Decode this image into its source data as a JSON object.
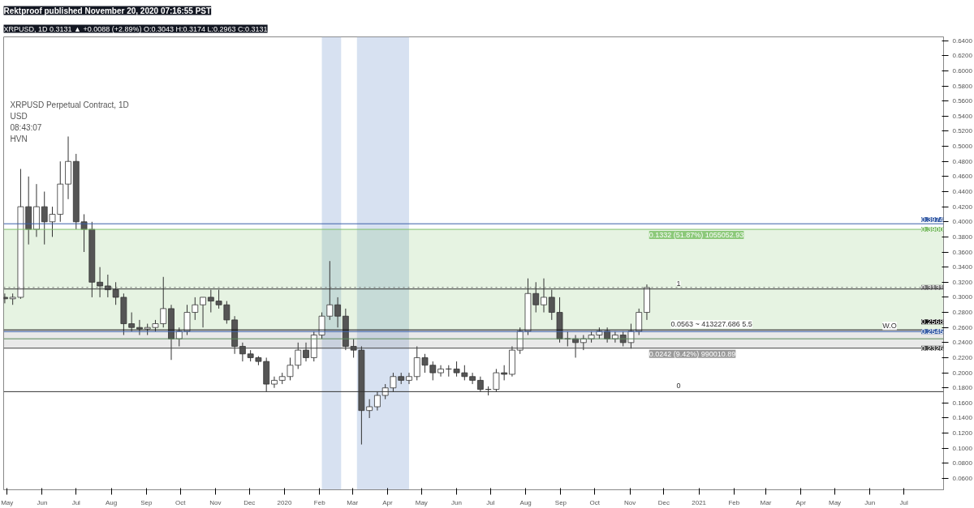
{
  "chart_data": {
    "type": "candlestick",
    "title": "Rektproof published November 20, 2020 07:16:55 PST",
    "subtitle": "XRPUSD, 1D 0.3131 ▲ +0.0088 (+2.89%) O:0.3043 H:0.3174 L:0.2963 C:0.3131",
    "x": [
      "2019-04-29",
      "2019-05-06",
      "2019-05-13",
      "2019-05-20",
      "2019-05-27",
      "2019-06-03",
      "2019-06-10",
      "2019-06-17",
      "2019-06-24",
      "2019-07-01",
      "2019-07-08",
      "2019-07-15",
      "2019-07-22",
      "2019-07-29",
      "2019-08-05",
      "2019-08-12",
      "2019-08-19",
      "2019-08-26",
      "2019-09-02",
      "2019-09-09",
      "2019-09-16",
      "2019-09-23",
      "2019-09-30",
      "2019-10-07",
      "2019-10-14",
      "2019-10-21",
      "2019-10-28",
      "2019-11-04",
      "2019-11-11",
      "2019-11-18",
      "2019-11-25",
      "2019-12-02",
      "2019-12-09",
      "2019-12-16",
      "2019-12-23",
      "2019-12-30",
      "2020-01-06",
      "2020-01-13",
      "2020-01-20",
      "2020-01-27",
      "2020-02-03",
      "2020-02-10",
      "2020-02-17",
      "2020-02-24",
      "2020-03-02",
      "2020-03-09",
      "2020-03-16",
      "2020-03-23",
      "2020-03-30",
      "2020-04-06",
      "2020-04-13",
      "2020-04-20",
      "2020-04-27",
      "2020-05-04",
      "2020-05-11",
      "2020-05-18",
      "2020-05-25",
      "2020-06-01",
      "2020-06-08",
      "2020-06-15",
      "2020-06-22",
      "2020-06-29",
      "2020-07-06",
      "2020-07-13",
      "2020-07-20",
      "2020-07-27",
      "2020-08-03",
      "2020-08-10",
      "2020-08-17",
      "2020-08-24",
      "2020-08-31",
      "2020-09-07",
      "2020-09-14",
      "2020-09-21",
      "2020-09-28",
      "2020-10-05",
      "2020-10-12",
      "2020-10-19",
      "2020-10-26",
      "2020-11-02",
      "2020-11-09",
      "2020-11-16"
    ],
    "ohlc": [
      [
        0.3,
        0.305,
        0.292,
        0.298
      ],
      [
        0.298,
        0.305,
        0.29,
        0.3
      ],
      [
        0.3,
        0.47,
        0.298,
        0.42
      ],
      [
        0.42,
        0.46,
        0.37,
        0.39
      ],
      [
        0.39,
        0.45,
        0.38,
        0.42
      ],
      [
        0.42,
        0.44,
        0.37,
        0.4
      ],
      [
        0.4,
        0.42,
        0.38,
        0.41
      ],
      [
        0.41,
        0.48,
        0.4,
        0.45
      ],
      [
        0.45,
        0.513,
        0.43,
        0.48
      ],
      [
        0.48,
        0.49,
        0.39,
        0.4
      ],
      [
        0.4,
        0.41,
        0.36,
        0.39
      ],
      [
        0.39,
        0.4,
        0.3,
        0.32
      ],
      [
        0.32,
        0.34,
        0.3,
        0.315
      ],
      [
        0.315,
        0.33,
        0.3,
        0.31
      ],
      [
        0.31,
        0.32,
        0.29,
        0.3
      ],
      [
        0.3,
        0.305,
        0.25,
        0.265
      ],
      [
        0.265,
        0.28,
        0.255,
        0.26
      ],
      [
        0.26,
        0.27,
        0.25,
        0.258
      ],
      [
        0.258,
        0.265,
        0.25,
        0.26
      ],
      [
        0.26,
        0.27,
        0.255,
        0.265
      ],
      [
        0.265,
        0.327,
        0.26,
        0.285
      ],
      [
        0.285,
        0.29,
        0.217,
        0.245
      ],
      [
        0.245,
        0.26,
        0.235,
        0.255
      ],
      [
        0.255,
        0.29,
        0.25,
        0.28
      ],
      [
        0.28,
        0.3,
        0.27,
        0.29
      ],
      [
        0.29,
        0.3,
        0.26,
        0.3
      ],
      [
        0.3,
        0.31,
        0.28,
        0.295
      ],
      [
        0.295,
        0.31,
        0.285,
        0.29
      ],
      [
        0.29,
        0.295,
        0.265,
        0.27
      ],
      [
        0.27,
        0.275,
        0.225,
        0.235
      ],
      [
        0.235,
        0.24,
        0.215,
        0.225
      ],
      [
        0.225,
        0.23,
        0.215,
        0.22
      ],
      [
        0.22,
        0.222,
        0.21,
        0.215
      ],
      [
        0.215,
        0.22,
        0.175,
        0.185
      ],
      [
        0.185,
        0.195,
        0.18,
        0.19
      ],
      [
        0.19,
        0.2,
        0.185,
        0.195
      ],
      [
        0.195,
        0.22,
        0.19,
        0.21
      ],
      [
        0.21,
        0.24,
        0.205,
        0.23
      ],
      [
        0.23,
        0.24,
        0.215,
        0.22
      ],
      [
        0.22,
        0.255,
        0.215,
        0.25
      ],
      [
        0.25,
        0.28,
        0.245,
        0.275
      ],
      [
        0.275,
        0.348,
        0.27,
        0.29
      ],
      [
        0.29,
        0.3,
        0.26,
        0.275
      ],
      [
        0.275,
        0.285,
        0.23,
        0.235
      ],
      [
        0.235,
        0.245,
        0.22,
        0.23
      ],
      [
        0.23,
        0.235,
        0.105,
        0.15
      ],
      [
        0.15,
        0.165,
        0.14,
        0.155
      ],
      [
        0.155,
        0.175,
        0.15,
        0.17
      ],
      [
        0.17,
        0.185,
        0.165,
        0.18
      ],
      [
        0.18,
        0.2,
        0.175,
        0.195
      ],
      [
        0.195,
        0.2,
        0.185,
        0.19
      ],
      [
        0.19,
        0.2,
        0.185,
        0.195
      ],
      [
        0.195,
        0.235,
        0.19,
        0.22
      ],
      [
        0.22,
        0.225,
        0.2,
        0.21
      ],
      [
        0.21,
        0.215,
        0.19,
        0.2
      ],
      [
        0.2,
        0.21,
        0.195,
        0.205
      ],
      [
        0.205,
        0.21,
        0.195,
        0.205
      ],
      [
        0.205,
        0.215,
        0.195,
        0.2
      ],
      [
        0.2,
        0.21,
        0.19,
        0.195
      ],
      [
        0.195,
        0.2,
        0.185,
        0.19
      ],
      [
        0.19,
        0.195,
        0.175,
        0.178
      ],
      [
        0.178,
        0.182,
        0.17,
        0.178
      ],
      [
        0.178,
        0.205,
        0.175,
        0.2
      ],
      [
        0.2,
        0.21,
        0.19,
        0.198
      ],
      [
        0.198,
        0.235,
        0.195,
        0.23
      ],
      [
        0.23,
        0.26,
        0.225,
        0.255
      ],
      [
        0.255,
        0.325,
        0.25,
        0.305
      ],
      [
        0.305,
        0.32,
        0.28,
        0.29
      ],
      [
        0.29,
        0.325,
        0.28,
        0.3
      ],
      [
        0.3,
        0.31,
        0.27,
        0.28
      ],
      [
        0.28,
        0.3,
        0.24,
        0.245
      ],
      [
        0.245,
        0.255,
        0.235,
        0.245
      ],
      [
        0.245,
        0.25,
        0.22,
        0.24
      ],
      [
        0.24,
        0.25,
        0.23,
        0.245
      ],
      [
        0.245,
        0.255,
        0.24,
        0.25
      ],
      [
        0.25,
        0.26,
        0.245,
        0.255
      ],
      [
        0.255,
        0.26,
        0.24,
        0.245
      ],
      [
        0.245,
        0.255,
        0.24,
        0.25
      ],
      [
        0.25,
        0.255,
        0.235,
        0.24
      ],
      [
        0.24,
        0.265,
        0.232,
        0.255
      ],
      [
        0.255,
        0.285,
        0.25,
        0.28
      ],
      [
        0.28,
        0.317,
        0.27,
        0.313
      ]
    ],
    "xlim": [
      "2019-04-28",
      "2021-08-05"
    ],
    "xticks": [
      {
        "value": "2019-05-01",
        "label": "May"
      },
      {
        "value": "2019-06-01",
        "label": "Jun"
      },
      {
        "value": "2019-07-01",
        "label": "Jul"
      },
      {
        "value": "2019-08-01",
        "label": "Aug"
      },
      {
        "value": "2019-09-01",
        "label": "Sep"
      },
      {
        "value": "2019-10-01",
        "label": "Oct"
      },
      {
        "value": "2019-11-01",
        "label": "Nov"
      },
      {
        "value": "2019-12-01",
        "label": "Dec"
      },
      {
        "value": "2020-01-01",
        "label": "2020"
      },
      {
        "value": "2020-02-01",
        "label": "Feb"
      },
      {
        "value": "2020-03-01",
        "label": "Mar"
      },
      {
        "value": "2020-04-01",
        "label": "Apr"
      },
      {
        "value": "2020-05-01",
        "label": "May"
      },
      {
        "value": "2020-06-01",
        "label": "Jun"
      },
      {
        "value": "2020-07-01",
        "label": "Jul"
      },
      {
        "value": "2020-08-01",
        "label": "Aug"
      },
      {
        "value": "2020-09-01",
        "label": "Sep"
      },
      {
        "value": "2020-10-01",
        "label": "Oct"
      },
      {
        "value": "2020-11-01",
        "label": "Nov"
      },
      {
        "value": "2020-12-01",
        "label": "Dec"
      },
      {
        "value": "2021-01-01",
        "label": "2021"
      },
      {
        "value": "2021-02-01",
        "label": "Feb"
      },
      {
        "value": "2021-03-01",
        "label": "Mar"
      },
      {
        "value": "2021-04-01",
        "label": "Apr"
      },
      {
        "value": "2021-05-01",
        "label": "May"
      },
      {
        "value": "2021-06-01",
        "label": "Jun"
      },
      {
        "value": "2021-07-01",
        "label": "Jul"
      }
    ],
    "ylim": [
      0.045,
      0.645
    ],
    "yticks": [
      {
        "value": 0.06,
        "label": "0.0600"
      },
      {
        "value": 0.08,
        "label": "0.0800"
      },
      {
        "value": 0.1,
        "label": "0.1000"
      },
      {
        "value": 0.12,
        "label": "0.1200"
      },
      {
        "value": 0.14,
        "label": "0.1400"
      },
      {
        "value": 0.16,
        "label": "0.1600"
      },
      {
        "value": 0.18,
        "label": "0.1800"
      },
      {
        "value": 0.2,
        "label": "0.2000"
      },
      {
        "value": 0.22,
        "label": "0.2200"
      },
      {
        "value": 0.24,
        "label": "0.2400"
      },
      {
        "value": 0.26,
        "label": "0.2600"
      },
      {
        "value": 0.28,
        "label": "0.2800"
      },
      {
        "value": 0.3,
        "label": "0.3000"
      },
      {
        "value": 0.32,
        "label": "0.3200"
      },
      {
        "value": 0.34,
        "label": "0.3400"
      },
      {
        "value": 0.36,
        "label": "0.3600"
      },
      {
        "value": 0.38,
        "label": "0.3800"
      },
      {
        "value": 0.4,
        "label": "0.4000"
      },
      {
        "value": 0.42,
        "label": "0.4200"
      },
      {
        "value": 0.44,
        "label": "0.4400"
      },
      {
        "value": 0.46,
        "label": "0.4600"
      },
      {
        "value": 0.48,
        "label": "0.4800"
      },
      {
        "value": 0.5,
        "label": "0.5000"
      },
      {
        "value": 0.52,
        "label": "0.5200"
      },
      {
        "value": 0.54,
        "label": "0.5400"
      },
      {
        "value": 0.56,
        "label": "0.5600"
      },
      {
        "value": 0.58,
        "label": "0.5800"
      },
      {
        "value": 0.6,
        "label": "0.6000"
      },
      {
        "value": 0.62,
        "label": "0.6200"
      },
      {
        "value": 0.64,
        "label": "0.6400"
      }
    ],
    "ref_lines": [
      {
        "axis": "y",
        "value": 0.3974,
        "label": "0.3974",
        "color": "#3a5fa8"
      },
      {
        "axis": "y",
        "value": 0.39,
        "label": "0.3900",
        "color": "#7fbf6a"
      },
      {
        "axis": "y",
        "value": 0.3131,
        "label": "0.3131",
        "color": "#777777",
        "line_style": "dotted"
      },
      {
        "axis": "y",
        "value": 0.311,
        "label": null,
        "color": "#333333"
      },
      {
        "axis": "y",
        "value": 0.2568,
        "label": "0.2568",
        "color": "#111111"
      },
      {
        "axis": "y",
        "value": 0.2545,
        "label": "0.2545",
        "color": "#3a5fa8"
      },
      {
        "axis": "y",
        "value": 0.245,
        "label": null,
        "color": "#5a8a5a"
      },
      {
        "axis": "y",
        "value": 0.2326,
        "label": "0.2326",
        "color": "#444444"
      },
      {
        "axis": "y",
        "value": 0.175,
        "label": null,
        "color": "#333333"
      }
    ],
    "bands": [
      {
        "axis": "x",
        "from": "2020-02-03",
        "to": "2020-02-20",
        "label": null,
        "color": "#b0c4e4"
      },
      {
        "axis": "x",
        "from": "2020-03-05",
        "to": "2020-04-20",
        "label": null,
        "color": "#b0c4e4"
      },
      {
        "axis": "y",
        "from": 0.2568,
        "to": 0.39,
        "label": "0.1332 (51.87%) 1055052.93",
        "color": "#8cc97a"
      },
      {
        "axis": "y",
        "from": 0.2326,
        "to": 0.2568,
        "label": "0.0242 (9.42%) 990010.89",
        "color": "#9a9a9a"
      }
    ],
    "annotations": [
      "XRPUSD Perpetual Contract, 1D",
      "USD",
      "08:43:07",
      "HVN",
      {
        "text": "0.0563 ~ 413227.686 5.5",
        "x": "2020-12-05",
        "y": 0.2568
      },
      {
        "text": "1",
        "x": "2020-12-10",
        "y": 0.311
      },
      {
        "text": "0",
        "x": "2020-12-10",
        "y": 0.175
      },
      {
        "text": "W.O",
        "x": "2021-06-10",
        "y": 0.2545
      }
    ],
    "grid": false
  }
}
